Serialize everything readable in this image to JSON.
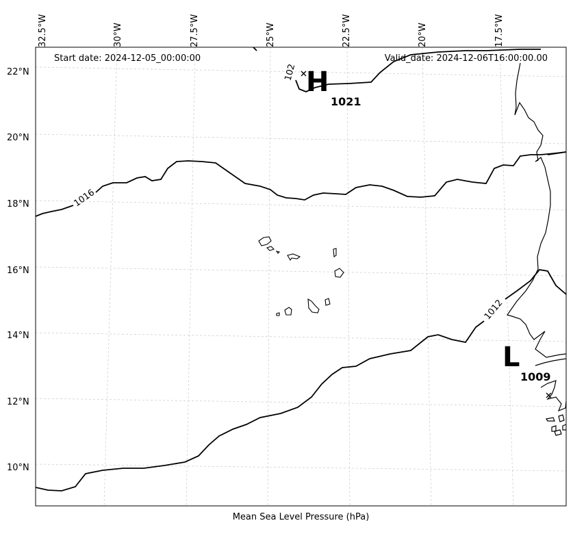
{
  "header": {
    "start_date": "Start date: 2024-12-05_00:00:00",
    "valid_date": "Valid_date: 2024-12-06T16:00:00.00"
  },
  "axes": {
    "lat_labels": [
      "22°N",
      "20°N",
      "18°N",
      "16°N",
      "14°N",
      "12°N",
      "10°N"
    ],
    "lon_labels": [
      "32.5°W",
      "30°W",
      "27.5°W",
      "25°W",
      "22.5°W",
      "20°W",
      "17.5°W"
    ]
  },
  "pressure_centers": {
    "high": {
      "letter": "H",
      "value": "1021"
    },
    "low": {
      "letter": "L",
      "value": "1009"
    }
  },
  "contour_labels": {
    "c1016": "1016",
    "c1012": "1012",
    "c1020": "102"
  },
  "footer": {
    "label": "Mean Sea Level Pressure (hPa)"
  },
  "colors": {
    "contour": "#000000",
    "grid": "#c8c8c8",
    "frame": "#000000"
  }
}
